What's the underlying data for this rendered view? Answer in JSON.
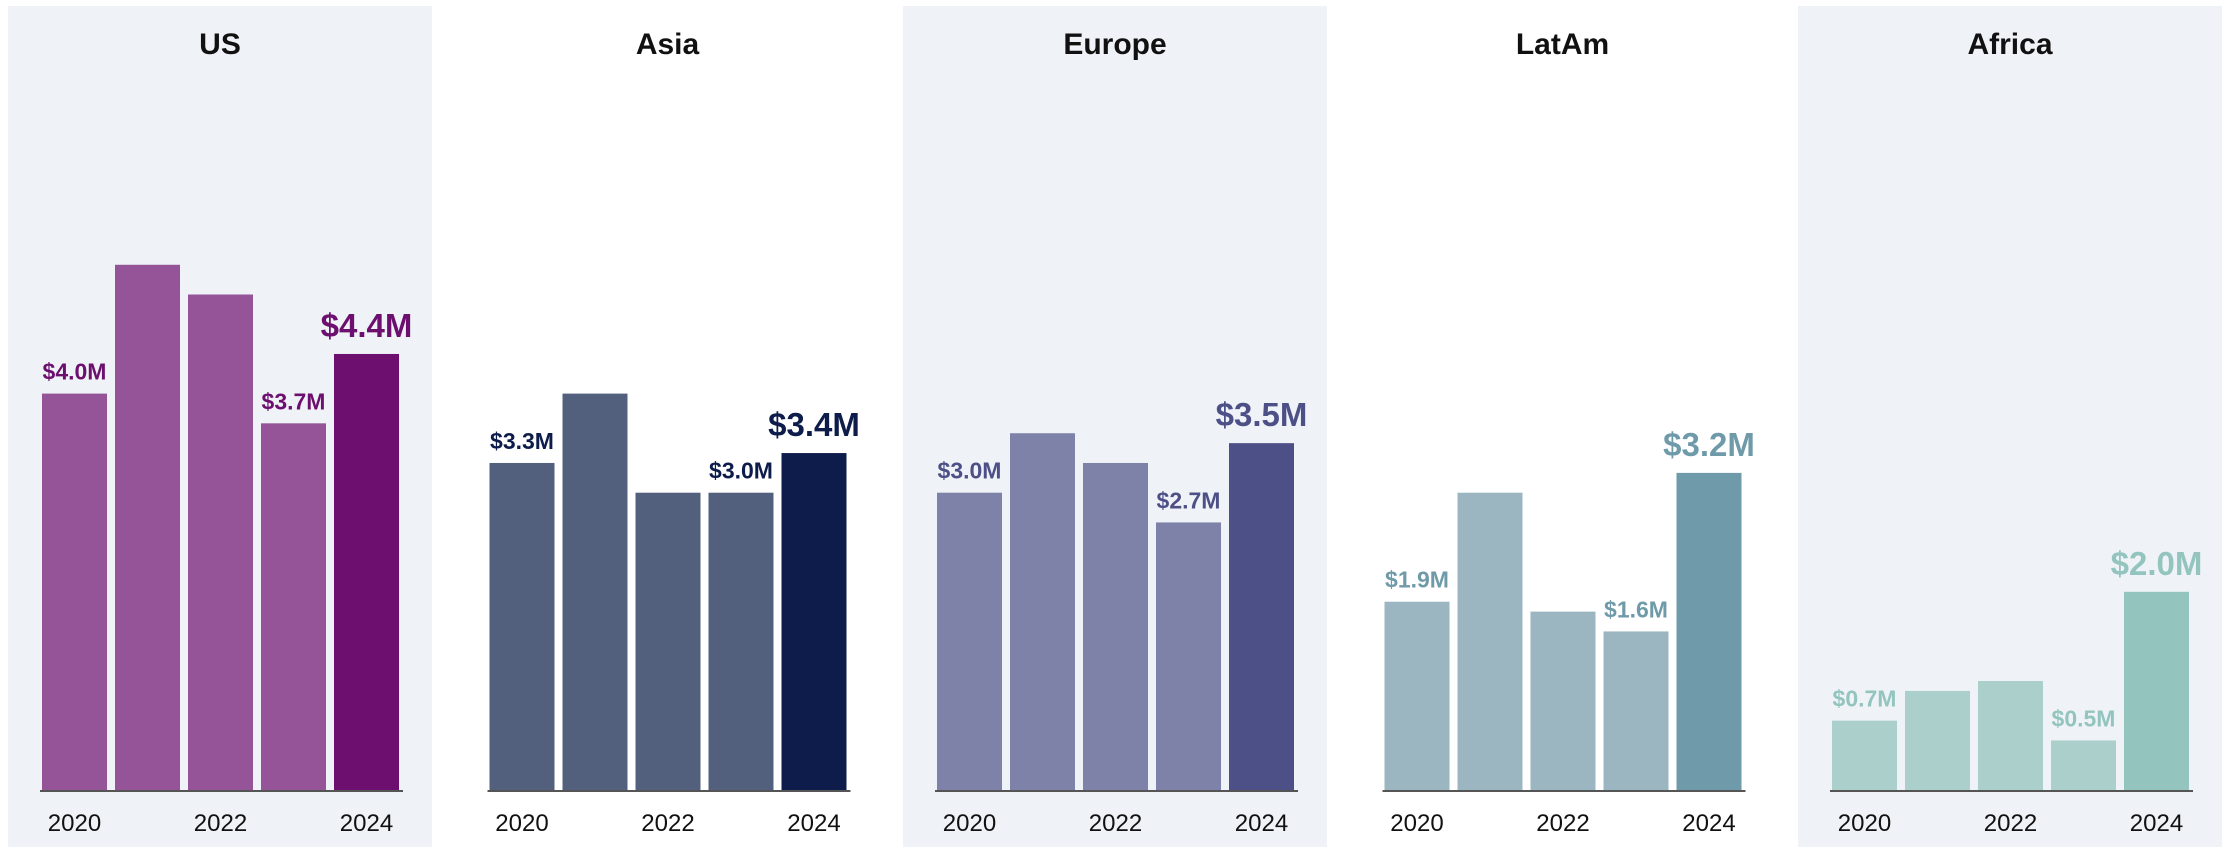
{
  "chart_data": [
    {
      "type": "bar",
      "title": "US",
      "categories": [
        "2020",
        "2021",
        "2022",
        "2023",
        "2024"
      ],
      "tick_labels": [
        "2020",
        "",
        "2022",
        "",
        "2024"
      ],
      "values": [
        4.0,
        5.3,
        5.0,
        3.7,
        4.4
      ],
      "data_labels": [
        "$4.0M",
        "",
        "",
        "$3.7M",
        "$4.4M"
      ],
      "ylim": [
        0,
        8
      ],
      "background": "#eff3f7",
      "bar_color": "#955398",
      "highlight_color": "#6c0f6f"
    },
    {
      "type": "bar",
      "title": "Asia",
      "categories": [
        "2020",
        "2021",
        "2022",
        "2023",
        "2024"
      ],
      "tick_labels": [
        "2020",
        "",
        "2022",
        "",
        "2024"
      ],
      "values": [
        3.3,
        4.0,
        3.0,
        3.0,
        3.4
      ],
      "data_labels": [
        "$3.3M",
        "",
        "",
        "$3.0M",
        "$3.4M"
      ],
      "ylim": [
        0,
        8
      ],
      "background": "#ffffff",
      "bar_color": "#53607d",
      "highlight_color": "#0d1c4a"
    },
    {
      "type": "bar",
      "title": "Europe",
      "categories": [
        "2020",
        "2021",
        "2022",
        "2023",
        "2024"
      ],
      "tick_labels": [
        "2020",
        "",
        "2022",
        "",
        "2024"
      ],
      "values": [
        3.0,
        3.6,
        3.3,
        2.7,
        3.5
      ],
      "data_labels": [
        "$3.0M",
        "",
        "",
        "$2.7M",
        "$3.5M"
      ],
      "ylim": [
        0,
        8
      ],
      "background": "#eff3f7",
      "bar_color": "#7e81a8",
      "highlight_color": "#4d4f87"
    },
    {
      "type": "bar",
      "title": "LatAm",
      "categories": [
        "2020",
        "2021",
        "2022",
        "2023",
        "2024"
      ],
      "tick_labels": [
        "2020",
        "",
        "2022",
        "",
        "2024"
      ],
      "values": [
        1.9,
        3.0,
        1.8,
        1.6,
        3.2
      ],
      "data_labels": [
        "$1.9M",
        "",
        "",
        "$1.6M",
        "$3.2M"
      ],
      "ylim": [
        0,
        8
      ],
      "background": "#ffffff",
      "bar_color": "#9bb6c1",
      "highlight_color": "#6f9aa9"
    },
    {
      "type": "bar",
      "title": "Africa",
      "categories": [
        "2020",
        "2021",
        "2022",
        "2023",
        "2024"
      ],
      "tick_labels": [
        "2020",
        "",
        "2022",
        "",
        "2024"
      ],
      "values": [
        0.7,
        1.0,
        1.1,
        0.5,
        2.0
      ],
      "data_labels": [
        "$0.7M",
        "",
        "",
        "$0.5M",
        "$2.0M"
      ],
      "ylim": [
        0,
        8
      ],
      "background": "#eff3f7",
      "bar_color": "#abd0cb",
      "highlight_color": "#93c4be"
    }
  ]
}
